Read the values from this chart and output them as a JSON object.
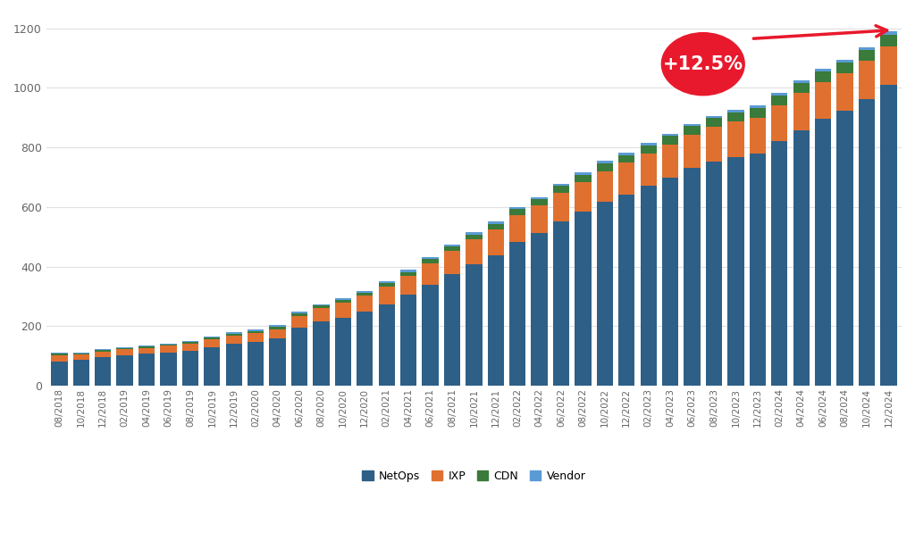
{
  "labels": [
    "08/2018",
    "10/2018",
    "12/2018",
    "02/2019",
    "04/2019",
    "06/2019",
    "08/2019",
    "10/2019",
    "12/2019",
    "02/2020",
    "04/2020",
    "06/2020",
    "08/2020",
    "10/2020",
    "12/2020",
    "02/2021",
    "04/2021",
    "06/2021",
    "08/2021",
    "10/2021",
    "12/2021",
    "02/2022",
    "04/2022",
    "06/2022",
    "08/2022",
    "10/2022",
    "12/2022",
    "02/2023",
    "04/2023",
    "06/2023",
    "08/2023",
    "10/2023",
    "12/2023",
    "02/2024",
    "04/2024",
    "06/2024",
    "08/2024",
    "10/2024",
    "12/2024"
  ],
  "netops": [
    82,
    86,
    95,
    102,
    107,
    112,
    118,
    130,
    140,
    148,
    160,
    195,
    215,
    228,
    248,
    273,
    305,
    340,
    375,
    408,
    438,
    483,
    512,
    552,
    585,
    618,
    643,
    672,
    700,
    730,
    753,
    768,
    780,
    820,
    858,
    895,
    922,
    963,
    1010
  ],
  "ixp": [
    20,
    18,
    20,
    20,
    20,
    22,
    24,
    26,
    28,
    28,
    30,
    40,
    45,
    50,
    55,
    60,
    65,
    72,
    78,
    83,
    88,
    90,
    93,
    97,
    100,
    103,
    105,
    108,
    110,
    112,
    115,
    118,
    120,
    122,
    124,
    125,
    127,
    128,
    130
  ],
  "cdn": [
    5,
    5,
    5,
    5,
    5,
    5,
    6,
    6,
    7,
    7,
    8,
    8,
    9,
    9,
    10,
    11,
    12,
    14,
    15,
    17,
    18,
    20,
    21,
    22,
    24,
    25,
    26,
    27,
    28,
    29,
    30,
    31,
    32,
    33,
    33,
    34,
    35,
    35,
    37
  ],
  "vendor": [
    3,
    3,
    3,
    3,
    3,
    3,
    3,
    4,
    5,
    5,
    5,
    5,
    5,
    6,
    6,
    7,
    7,
    7,
    7,
    7,
    7,
    7,
    7,
    7,
    7,
    8,
    8,
    8,
    8,
    8,
    8,
    9,
    9,
    9,
    9,
    10,
    10,
    10,
    12
  ],
  "colors": {
    "netops": "#2e5f87",
    "ixp": "#e07030",
    "cdn": "#3a7a3a",
    "vendor": "#5b9bd5"
  },
  "ylim": [
    0,
    1250
  ],
  "yticks": [
    0,
    200,
    400,
    600,
    800,
    1000,
    1200
  ],
  "annotation_text": "+12.5%",
  "annotation_color": "#e8192c",
  "background_color": "#ffffff"
}
